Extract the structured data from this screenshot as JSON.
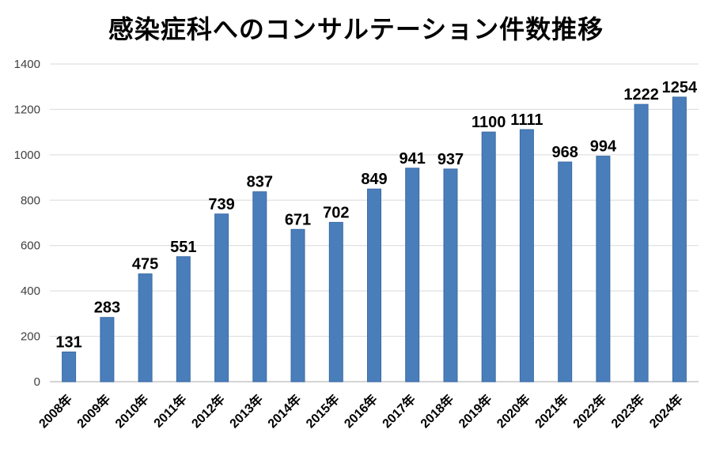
{
  "page": {
    "background": "#FFFFFF"
  },
  "chart_data": {
    "type": "bar",
    "title": "感染症科へのコンサルテーション件数推移",
    "categories": [
      "2008年",
      "2009年",
      "2010年",
      "2011年",
      "2012年",
      "2013年",
      "2014年",
      "2015年",
      "2016年",
      "2017年",
      "2018年",
      "2019年",
      "2020年",
      "2021年",
      "2022年",
      "2023年",
      "2024年"
    ],
    "values": [
      131,
      283,
      475,
      551,
      739,
      837,
      671,
      702,
      849,
      941,
      937,
      1100,
      1111,
      968,
      994,
      1222,
      1254
    ],
    "xlabel": "",
    "ylabel": "",
    "ylim": [
      0,
      1400
    ],
    "yticks": [
      0,
      200,
      400,
      600,
      800,
      1000,
      1200,
      1400
    ],
    "grid": true,
    "legend": false,
    "data_labels": true,
    "x_label_rotation_deg": 45,
    "colors": {
      "bar_fill": "#4A7EBB",
      "bar_border": "#3A6BA5",
      "gridline": "#D9D9D9",
      "axis_line": "#C6C6C6",
      "y_tick_label": "#404040",
      "x_tick_label": "#000000",
      "data_label": "#000000",
      "title": "#000000",
      "background": "#FFFFFF"
    }
  }
}
